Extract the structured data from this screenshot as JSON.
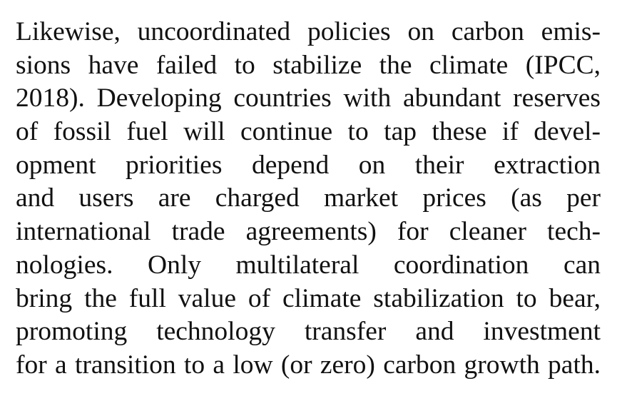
{
  "paragraph": {
    "lines": [
      "Likewise, uncoordinated policies on carbon emis-",
      "sions have failed to stabilize the climate (IPCC,",
      "2018). Developing countries with abundant reserves",
      "of fossil fuel will continue to tap these if devel-",
      "opment priorities depend on their extraction",
      "and users are charged market prices (as per",
      "international trade agreements) for cleaner tech-",
      "nologies. Only multilateral coordination can",
      "bring the full value of climate stabilization to bear,",
      "promoting technology transfer and investment",
      "for a transition to a low (or zero) carbon growth path."
    ]
  }
}
